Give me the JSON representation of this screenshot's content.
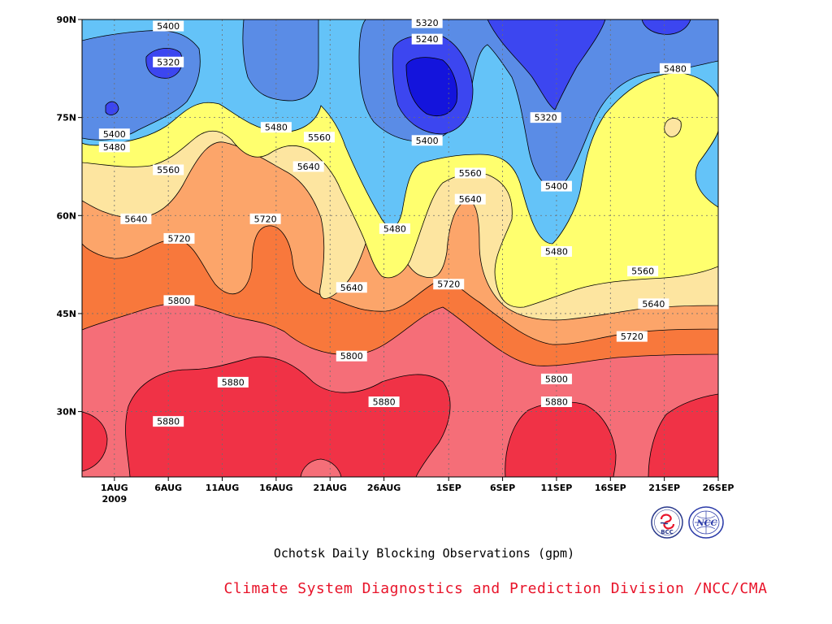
{
  "chart_data": {
    "type": "heatmap",
    "subtype": "filled-contour",
    "title": "Ochotsk Daily Blocking Observations (gpm)",
    "credit": "Climate System Diagnostics and Prediction Division /NCC/CMA",
    "xlabel": "",
    "ylabel": "",
    "x_axis": {
      "ticks": [
        "2009-08-01",
        "2009-08-06",
        "2009-08-11",
        "2009-08-16",
        "2009-08-21",
        "2009-08-26",
        "2009-09-01",
        "2009-09-06",
        "2009-09-11",
        "2009-09-16",
        "2009-09-21",
        "2009-09-26"
      ],
      "tick_labels": [
        "1AUG",
        "6AUG",
        "11AUG",
        "16AUG",
        "21AUG",
        "26AUG",
        "1SEP",
        "6SEP",
        "11SEP",
        "16SEP",
        "21SEP",
        "26SEP"
      ],
      "year_label": "2009",
      "range": [
        "2009-07-29",
        "2009-09-26"
      ]
    },
    "y_axis": {
      "ticks": [
        30,
        45,
        60,
        75,
        90
      ],
      "tick_labels": [
        "30N",
        "45N",
        "60N",
        "75N",
        "90N"
      ],
      "range": [
        20,
        90
      ]
    },
    "grid": true,
    "contour_levels": [
      5240,
      5320,
      5400,
      5480,
      5560,
      5640,
      5720,
      5800,
      5880
    ],
    "colors": {
      "below_5240": "#1414dc",
      "5240_5320": "#3c46f0",
      "5320_5400": "#5a8ce6",
      "5400_5480": "#64c3f8",
      "5480_5560": "#ffff6e",
      "5560_5640": "#fde5a0",
      "5640_5720": "#fca56a",
      "5720_5800": "#f8783c",
      "5800_5880": "#f56e78",
      "above_5880": "#f03246"
    },
    "contour_labels": [
      {
        "value": "5400",
        "date": "2009-08-06",
        "lat": 89
      },
      {
        "value": "5320",
        "date": "2009-08-06",
        "lat": 83.5
      },
      {
        "value": "5400",
        "date": "2009-08-01",
        "lat": 72.5
      },
      {
        "value": "5480",
        "date": "2009-08-01",
        "lat": 70.5
      },
      {
        "value": "5560",
        "date": "2009-08-06",
        "lat": 67
      },
      {
        "value": "5640",
        "date": "2009-08-03",
        "lat": 59.5
      },
      {
        "value": "5720",
        "date": "2009-08-07",
        "lat": 56.5
      },
      {
        "value": "5800",
        "date": "2009-08-07",
        "lat": 47
      },
      {
        "value": "5880",
        "date": "2009-08-12",
        "lat": 34.5
      },
      {
        "value": "5880",
        "date": "2009-08-06",
        "lat": 28.5
      },
      {
        "value": "5480",
        "date": "2009-08-16",
        "lat": 73.5
      },
      {
        "value": "5560",
        "date": "2009-08-20",
        "lat": 72
      },
      {
        "value": "5640",
        "date": "2009-08-19",
        "lat": 67.5
      },
      {
        "value": "5720",
        "date": "2009-08-15",
        "lat": 59.5
      },
      {
        "value": "5640",
        "date": "2009-08-23",
        "lat": 49
      },
      {
        "value": "5800",
        "date": "2009-08-23",
        "lat": 38.5
      },
      {
        "value": "5880",
        "date": "2009-08-26",
        "lat": 31.5
      },
      {
        "value": "5320",
        "date": "2009-08-30",
        "lat": 89.5
      },
      {
        "value": "5240",
        "date": "2009-08-30",
        "lat": 87
      },
      {
        "value": "5400",
        "date": "2009-08-30",
        "lat": 71.5
      },
      {
        "value": "5480",
        "date": "2009-08-27",
        "lat": 58
      },
      {
        "value": "5560",
        "date": "2009-09-03",
        "lat": 66.5
      },
      {
        "value": "5640",
        "date": "2009-09-03",
        "lat": 62.5
      },
      {
        "value": "5720",
        "date": "2009-09-01",
        "lat": 49.5
      },
      {
        "value": "5320",
        "date": "2009-09-10",
        "lat": 75
      },
      {
        "value": "5400",
        "date": "2009-09-11",
        "lat": 64.5
      },
      {
        "value": "5480",
        "date": "2009-09-11",
        "lat": 54.5
      },
      {
        "value": "5560",
        "date": "2009-09-19",
        "lat": 51.5
      },
      {
        "value": "5640",
        "date": "2009-09-20",
        "lat": 46.5
      },
      {
        "value": "5720",
        "date": "2009-09-18",
        "lat": 41.5
      },
      {
        "value": "5800",
        "date": "2009-09-11",
        "lat": 35
      },
      {
        "value": "5880",
        "date": "2009-09-11",
        "lat": 31.5
      },
      {
        "value": "5480",
        "date": "2009-09-22",
        "lat": 82.5
      }
    ]
  },
  "logos": {
    "bcc": {
      "icon": "bcc-logo-icon",
      "text": "BCC"
    },
    "ncc": {
      "icon": "ncc-logo-icon",
      "text": "NCC"
    }
  }
}
